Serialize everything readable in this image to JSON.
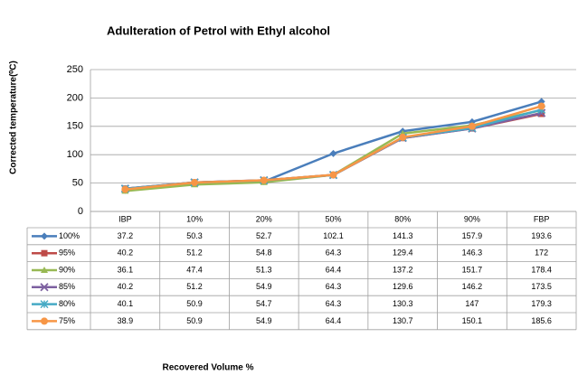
{
  "chart_data": {
    "type": "line",
    "title": "Adulteration of Petrol with Ethyl alcohol",
    "y_label": "Corrected temperature(⁰C)",
    "x_label": "Recovered Volume %",
    "categories": [
      "IBP",
      "10%",
      "20%",
      "50%",
      "80%",
      "90%",
      "FBP"
    ],
    "ylim": [
      0,
      250
    ],
    "yticks": [
      0,
      50,
      100,
      150,
      200,
      250
    ],
    "grid": true,
    "series": [
      {
        "name": "100%",
        "color": "#4a7ebb",
        "marker": "diamond",
        "values": [
          37.2,
          50.3,
          52.7,
          102.1,
          141.3,
          157.9,
          193.6
        ]
      },
      {
        "name": "95%",
        "color": "#be4b48",
        "marker": "square",
        "values": [
          40.2,
          51.2,
          54.8,
          64.3,
          129.4,
          146.3,
          172
        ]
      },
      {
        "name": "90%",
        "color": "#98b954",
        "marker": "triangle",
        "values": [
          36.1,
          47.4,
          51.3,
          64.4,
          137.2,
          151.7,
          178.4
        ]
      },
      {
        "name": "85%",
        "color": "#7d60a0",
        "marker": "x",
        "values": [
          40.2,
          51.2,
          54.9,
          64.3,
          129.6,
          146.2,
          173.5
        ]
      },
      {
        "name": "80%",
        "color": "#46aac5",
        "marker": "star",
        "values": [
          40.1,
          50.9,
          54.7,
          64.3,
          130.3,
          147,
          179.3
        ]
      },
      {
        "name": "75%",
        "color": "#f79646",
        "marker": "circle",
        "values": [
          38.9,
          50.9,
          54.9,
          64.4,
          130.7,
          150.1,
          185.6
        ]
      }
    ]
  }
}
